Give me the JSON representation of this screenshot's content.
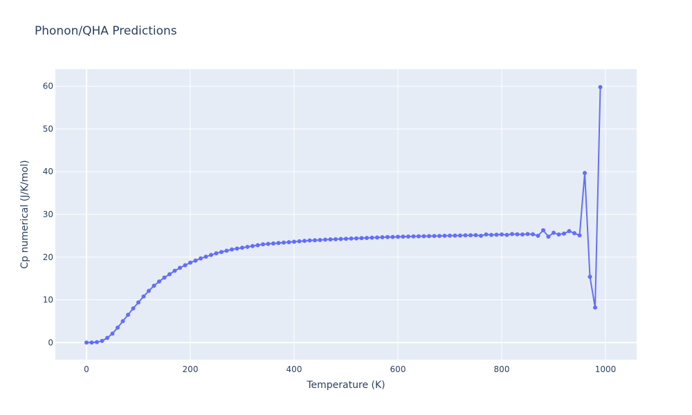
{
  "chart_data": {
    "type": "line",
    "title": "Phonon/QHA Predictions",
    "xlabel": "Temperature (K)",
    "ylabel": "Cp numerical (J/K/mol)",
    "xlim": [
      -60,
      1060
    ],
    "ylim": [
      -4,
      64
    ],
    "x_ticks": [
      0,
      200,
      400,
      600,
      800,
      1000
    ],
    "y_ticks": [
      0,
      10,
      20,
      30,
      40,
      50,
      60
    ],
    "grid": true,
    "legend": "none",
    "colors": {
      "line": "#636efa",
      "plot_bg": "#e5ecf6",
      "grid": "#ffffff",
      "text": "#2a3f5f"
    },
    "series": [
      {
        "x": [
          0,
          10,
          20,
          30,
          40,
          50,
          60,
          70,
          80,
          90,
          100,
          110,
          120,
          130,
          140,
          150,
          160,
          170,
          180,
          190,
          200,
          210,
          220,
          230,
          240,
          250,
          260,
          270,
          280,
          290,
          300,
          310,
          320,
          330,
          340,
          350,
          360,
          370,
          380,
          390,
          400,
          410,
          420,
          430,
          440,
          450,
          460,
          470,
          480,
          490,
          500,
          510,
          520,
          530,
          540,
          550,
          560,
          570,
          580,
          590,
          600,
          610,
          620,
          630,
          640,
          650,
          660,
          670,
          680,
          690,
          700,
          710,
          720,
          730,
          740,
          750,
          760,
          770,
          780,
          790,
          800,
          810,
          820,
          830,
          840,
          850,
          860,
          870,
          880,
          890,
          900,
          910,
          920,
          930,
          940,
          950,
          960,
          970,
          980,
          990
        ],
        "y": [
          0,
          0,
          0.1,
          0.4,
          1.1,
          2.1,
          3.5,
          5.0,
          6.5,
          8.0,
          9.4,
          10.8,
          12.1,
          13.3,
          14.3,
          15.2,
          16.0,
          16.8,
          17.5,
          18.1,
          18.7,
          19.2,
          19.7,
          20.1,
          20.5,
          20.9,
          21.2,
          21.5,
          21.8,
          22.0,
          22.2,
          22.4,
          22.6,
          22.8,
          23.0,
          23.1,
          23.2,
          23.3,
          23.4,
          23.5,
          23.6,
          23.7,
          23.8,
          23.9,
          23.95,
          24.0,
          24.1,
          24.15,
          24.2,
          24.25,
          24.3,
          24.35,
          24.4,
          24.45,
          24.5,
          24.55,
          24.6,
          24.65,
          24.7,
          24.72,
          24.75,
          24.8,
          24.82,
          24.85,
          24.88,
          24.9,
          24.92,
          24.95,
          24.97,
          25.0,
          25.02,
          25.05,
          25.07,
          25.1,
          25.12,
          25.15,
          25.0,
          25.3,
          25.2,
          25.25,
          25.3,
          25.2,
          25.4,
          25.35,
          25.3,
          25.4,
          25.35,
          25.0,
          26.3,
          24.8,
          25.7,
          25.3,
          25.5,
          26.1,
          25.6,
          25.1,
          39.7,
          15.4,
          8.2,
          59.8
        ]
      }
    ]
  }
}
